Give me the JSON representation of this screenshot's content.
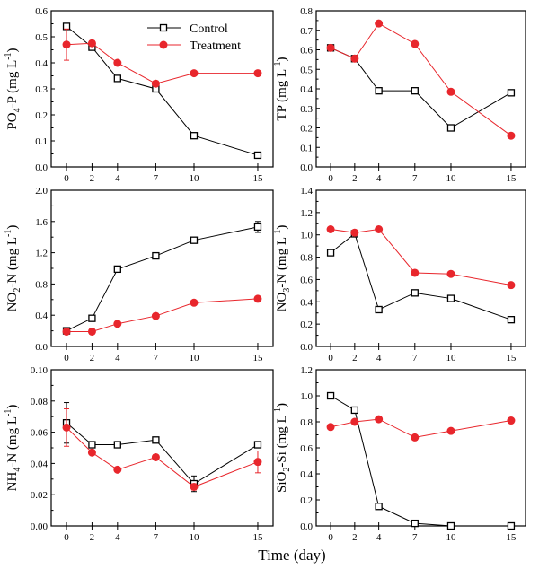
{
  "figure": {
    "xlabel": "Time (day)",
    "legend": {
      "placement": "top-right of first panel",
      "entries": [
        {
          "name": "Control",
          "marker": "open-square",
          "color": "#000000"
        },
        {
          "name": "Treatment",
          "marker": "filled-circle",
          "color": "#e8262c"
        }
      ]
    }
  },
  "chart_data": [
    {
      "type": "line",
      "ylabel": {
        "main": "PO",
        "sub": "4",
        "rest": "-P (mg L",
        "sup": "-1",
        "end": ")"
      },
      "x": [
        0,
        2,
        4,
        7,
        10,
        15
      ],
      "xticks": [
        "0",
        "2",
        "4",
        "7",
        "10",
        "15"
      ],
      "ylim": [
        0,
        0.6
      ],
      "yticks": [
        "0.0",
        "0.1",
        "0.2",
        "0.3",
        "0.4",
        "0.5",
        "0.6"
      ],
      "series": [
        {
          "name": "Control",
          "values": [
            0.54,
            0.46,
            0.34,
            0.3,
            0.12,
            0.045
          ],
          "errors": [
            0.01,
            0.01,
            0.01,
            0.01,
            0.005,
            0.005
          ]
        },
        {
          "name": "Treatment",
          "values": [
            0.47,
            0.475,
            0.4,
            0.32,
            0.36,
            0.36
          ],
          "errors": [
            0.06,
            0.01,
            0.01,
            0.01,
            0.005,
            0.005
          ]
        }
      ]
    },
    {
      "type": "line",
      "ylabel": {
        "main": "TP (mg L",
        "sub": "",
        "rest": "",
        "sup": "-1",
        "end": ")"
      },
      "x": [
        0,
        2,
        4,
        7,
        10,
        15
      ],
      "xticks": [
        "0",
        "2",
        "4",
        "7",
        "10",
        "15"
      ],
      "ylim": [
        0,
        0.8
      ],
      "yticks": [
        "0.0",
        "0.1",
        "0.2",
        "0.3",
        "0.4",
        "0.5",
        "0.6",
        "0.7",
        "0.8"
      ],
      "series": [
        {
          "name": "Control",
          "values": [
            0.61,
            0.555,
            0.39,
            0.39,
            0.2,
            0.38
          ],
          "errors": [
            0,
            0,
            0,
            0,
            0,
            0
          ]
        },
        {
          "name": "Treatment",
          "values": [
            0.61,
            0.555,
            0.735,
            0.63,
            0.385,
            0.16
          ],
          "errors": [
            0,
            0,
            0,
            0,
            0,
            0
          ]
        }
      ]
    },
    {
      "type": "line",
      "ylabel": {
        "main": "NO",
        "sub": "2",
        "rest": "-N (mg L",
        "sup": "-1",
        "end": ")"
      },
      "x": [
        0,
        2,
        4,
        7,
        10,
        15
      ],
      "xticks": [
        "0",
        "2",
        "4",
        "7",
        "10",
        "15"
      ],
      "ylim": [
        0,
        2.0
      ],
      "yticks": [
        "0.0",
        "0.4",
        "0.8",
        "1.2",
        "1.6",
        "2.0"
      ],
      "series": [
        {
          "name": "Control",
          "values": [
            0.2,
            0.36,
            0.99,
            1.16,
            1.36,
            1.53
          ],
          "errors": [
            0.01,
            0.01,
            0.01,
            0.01,
            0.01,
            0.07
          ]
        },
        {
          "name": "Treatment",
          "values": [
            0.19,
            0.19,
            0.29,
            0.39,
            0.56,
            0.61
          ],
          "errors": [
            0.01,
            0.01,
            0.01,
            0.01,
            0.01,
            0.01
          ]
        }
      ]
    },
    {
      "type": "line",
      "ylabel": {
        "main": "NO",
        "sub": "3",
        "rest": "-N (mg L",
        "sup": "-1",
        "end": ")"
      },
      "x": [
        0,
        2,
        4,
        7,
        10,
        15
      ],
      "xticks": [
        "0",
        "2",
        "4",
        "7",
        "10",
        "15"
      ],
      "ylim": [
        0,
        1.4
      ],
      "yticks": [
        "0.0",
        "0.2",
        "0.4",
        "0.6",
        "0.8",
        "1.0",
        "1.2",
        "1.4"
      ],
      "series": [
        {
          "name": "Control",
          "values": [
            0.84,
            1.01,
            0.33,
            0.48,
            0.43,
            0.24
          ],
          "errors": [
            0,
            0,
            0,
            0,
            0,
            0
          ]
        },
        {
          "name": "Treatment",
          "values": [
            1.05,
            1.02,
            1.05,
            0.66,
            0.65,
            0.55
          ],
          "errors": [
            0,
            0,
            0,
            0,
            0,
            0
          ]
        }
      ]
    },
    {
      "type": "line",
      "ylabel": {
        "main": "NH",
        "sub": "4",
        "rest": "-N (mg L",
        "sup": "-1",
        "end": ")"
      },
      "x": [
        0,
        2,
        4,
        7,
        10,
        15
      ],
      "xticks": [
        "0",
        "2",
        "4",
        "7",
        "10",
        "15"
      ],
      "ylim": [
        0,
        0.1
      ],
      "yticks": [
        "0.00",
        "0.02",
        "0.04",
        "0.06",
        "0.08",
        "0.10"
      ],
      "series": [
        {
          "name": "Control",
          "values": [
            0.066,
            0.052,
            0.052,
            0.055,
            0.027,
            0.052
          ],
          "errors": [
            0.013,
            0.001,
            0.001,
            0.001,
            0.005,
            0.001
          ]
        },
        {
          "name": "Treatment",
          "values": [
            0.063,
            0.047,
            0.036,
            0.044,
            0.025,
            0.041
          ],
          "errors": [
            0.012,
            0.001,
            0.001,
            0.001,
            0.002,
            0.007
          ]
        }
      ]
    },
    {
      "type": "line",
      "ylabel": {
        "main": "SiO",
        "sub": "2",
        "rest": "-Si (mg L",
        "sup": "-1",
        "end": ")"
      },
      "x": [
        0,
        2,
        4,
        7,
        10,
        15
      ],
      "xticks": [
        "0",
        "2",
        "4",
        "7",
        "10",
        "15"
      ],
      "ylim": [
        0,
        1.2
      ],
      "yticks": [
        "0.0",
        "0.2",
        "0.4",
        "0.6",
        "0.8",
        "1.0",
        "1.2"
      ],
      "series": [
        {
          "name": "Control",
          "values": [
            1.0,
            0.89,
            0.15,
            0.02,
            0.0,
            0.0
          ],
          "errors": [
            0,
            0,
            0,
            0,
            0,
            0
          ]
        },
        {
          "name": "Treatment",
          "values": [
            0.76,
            0.8,
            0.82,
            0.68,
            0.73,
            0.81
          ],
          "errors": [
            0,
            0,
            0,
            0,
            0,
            0
          ]
        }
      ]
    }
  ]
}
